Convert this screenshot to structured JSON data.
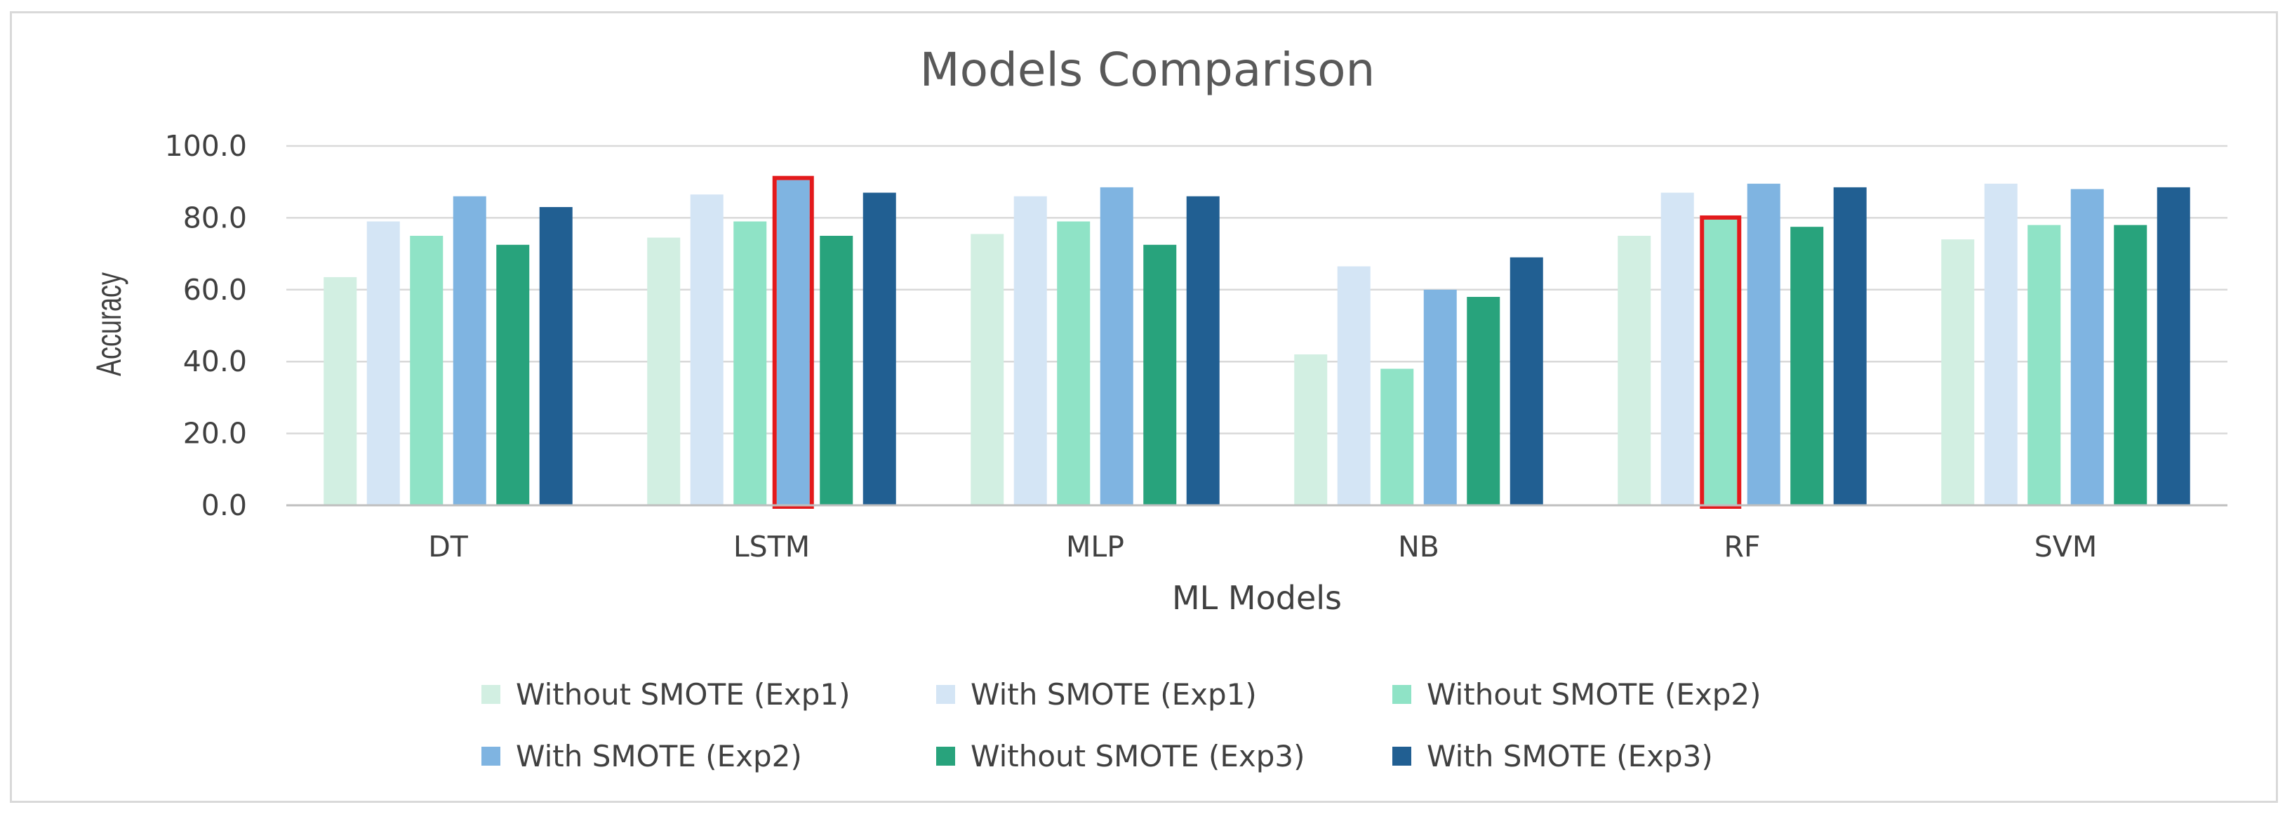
{
  "chart_data": {
    "type": "bar",
    "title": "Models Comparison",
    "xlabel": "ML Models",
    "ylabel": "Accuracy",
    "ylim": [
      0,
      100
    ],
    "yticks": [
      "0.0",
      "20.0",
      "40.0",
      "60.0",
      "80.0",
      "100.0"
    ],
    "grid": true,
    "legend_position": "bottom",
    "categories": [
      "DT",
      "LSTM",
      "MLP",
      "NB",
      "RF",
      "SVM"
    ],
    "series": [
      {
        "name": "Without SMOTE (Exp1)",
        "color": "#d2efe2",
        "values": [
          63.5,
          74.5,
          75.5,
          42.0,
          75.0,
          74.0
        ]
      },
      {
        "name": "With SMOTE (Exp1)",
        "color": "#d4e5f5",
        "values": [
          79.0,
          86.5,
          86.0,
          66.5,
          87.0,
          89.5
        ]
      },
      {
        "name": "Without SMOTE (Exp2)",
        "color": "#8fe3c6",
        "values": [
          75.0,
          79.0,
          79.0,
          38.0,
          79.5,
          78.0
        ]
      },
      {
        "name": "With SMOTE (Exp2)",
        "color": "#7fb4e1",
        "values": [
          86.0,
          90.5,
          88.5,
          60.0,
          89.5,
          88.0
        ]
      },
      {
        "name": "Without SMOTE (Exp3)",
        "color": "#28a37c",
        "values": [
          72.5,
          75.0,
          72.5,
          58.0,
          77.5,
          78.0
        ]
      },
      {
        "name": "With SMOTE (Exp3)",
        "color": "#215f92",
        "values": [
          83.0,
          87.0,
          86.0,
          69.0,
          88.5,
          88.5
        ]
      }
    ],
    "highlights": [
      {
        "category": "LSTM",
        "series": "With SMOTE (Exp2)",
        "color": "#e31a1c"
      },
      {
        "category": "RF",
        "series": "Without SMOTE (Exp2)",
        "color": "#e31a1c"
      }
    ]
  }
}
